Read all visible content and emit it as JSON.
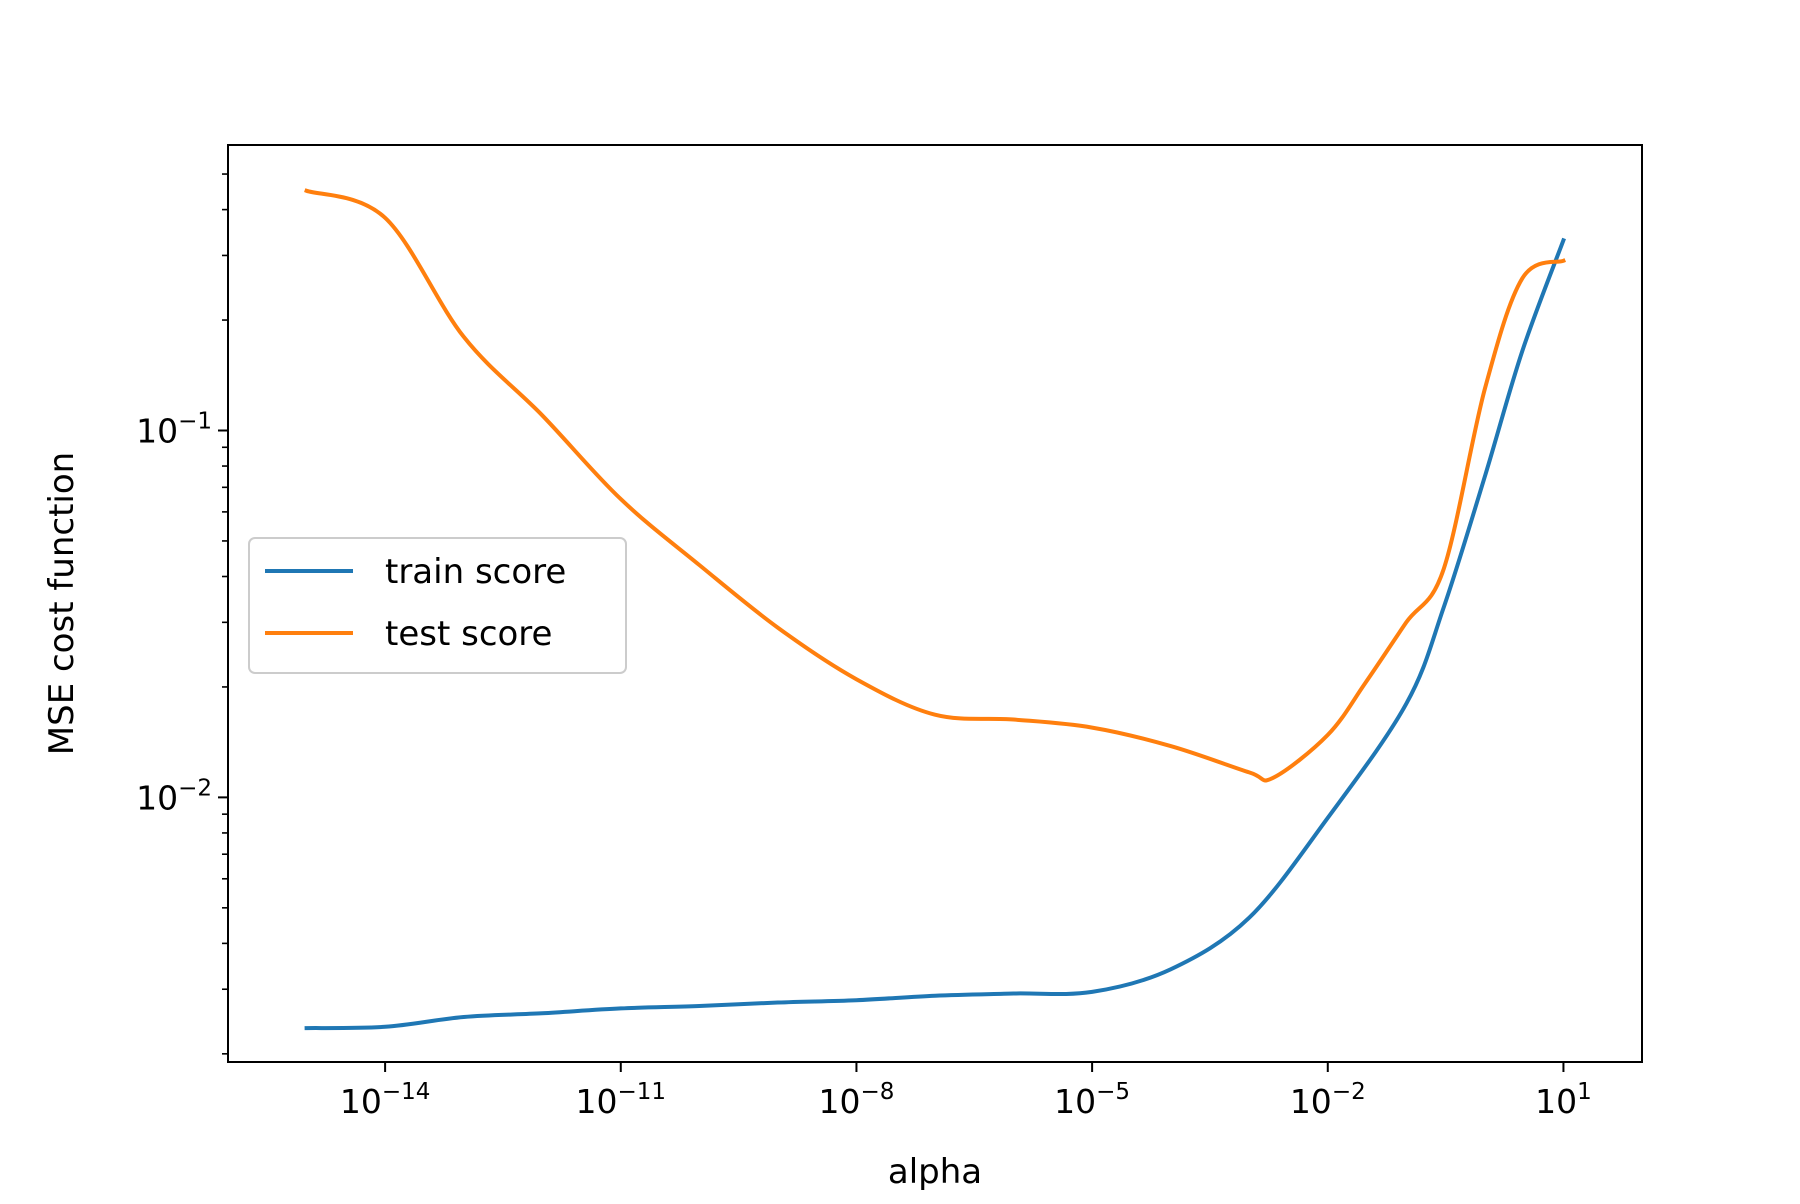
{
  "chart_data": {
    "type": "line",
    "title": "",
    "xlabel": "alpha",
    "ylabel": "MSE cost function",
    "xscale": "log",
    "yscale": "log",
    "xlim": [
      1e-16,
      100.0
    ],
    "ylim": [
      0.0019,
      0.6
    ],
    "grid": false,
    "legend_position": "center-left",
    "x_ticks": [
      {
        "value": 1e-14,
        "base": "10",
        "exp": "−14"
      },
      {
        "value": 1e-11,
        "base": "10",
        "exp": "−11"
      },
      {
        "value": 1e-08,
        "base": "10",
        "exp": "−8"
      },
      {
        "value": 1e-05,
        "base": "10",
        "exp": "−5"
      },
      {
        "value": 0.01,
        "base": "10",
        "exp": "−2"
      },
      {
        "value": 10.0,
        "base": "10",
        "exp": "1"
      }
    ],
    "y_ticks": [
      {
        "value": 0.1,
        "base": "10",
        "exp": "−1"
      },
      {
        "value": 0.01,
        "base": "10",
        "exp": "−2"
      }
    ],
    "series": [
      {
        "name": "train score",
        "color": "#1f77b4",
        "x": [
          1e-15,
          1e-14,
          1e-13,
          1e-12,
          1e-11,
          1e-10,
          1e-09,
          1e-08,
          1e-07,
          1e-06,
          1e-05,
          0.0001,
          0.001,
          0.01,
          0.1,
          0.3,
          1,
          3,
          10
        ],
        "y": [
          0.00235,
          0.00237,
          0.00252,
          0.00258,
          0.00266,
          0.0027,
          0.00276,
          0.0028,
          0.00288,
          0.00292,
          0.00295,
          0.0034,
          0.0047,
          0.0088,
          0.018,
          0.033,
          0.075,
          0.165,
          0.33
        ]
      },
      {
        "name": "test score",
        "color": "#ff7f0e",
        "x": [
          1e-15,
          1e-14,
          1e-13,
          1e-12,
          1e-11,
          1e-10,
          1e-09,
          1e-08,
          1e-07,
          1e-06,
          1e-05,
          0.0001,
          0.001,
          0.002,
          0.01,
          0.03,
          0.1,
          0.3,
          1,
          3,
          10
        ],
        "y": [
          0.45,
          0.38,
          0.18,
          0.11,
          0.065,
          0.043,
          0.029,
          0.021,
          0.0168,
          0.0163,
          0.0155,
          0.0138,
          0.0117,
          0.0113,
          0.0148,
          0.0205,
          0.03,
          0.042,
          0.13,
          0.26,
          0.29
        ]
      }
    ]
  }
}
